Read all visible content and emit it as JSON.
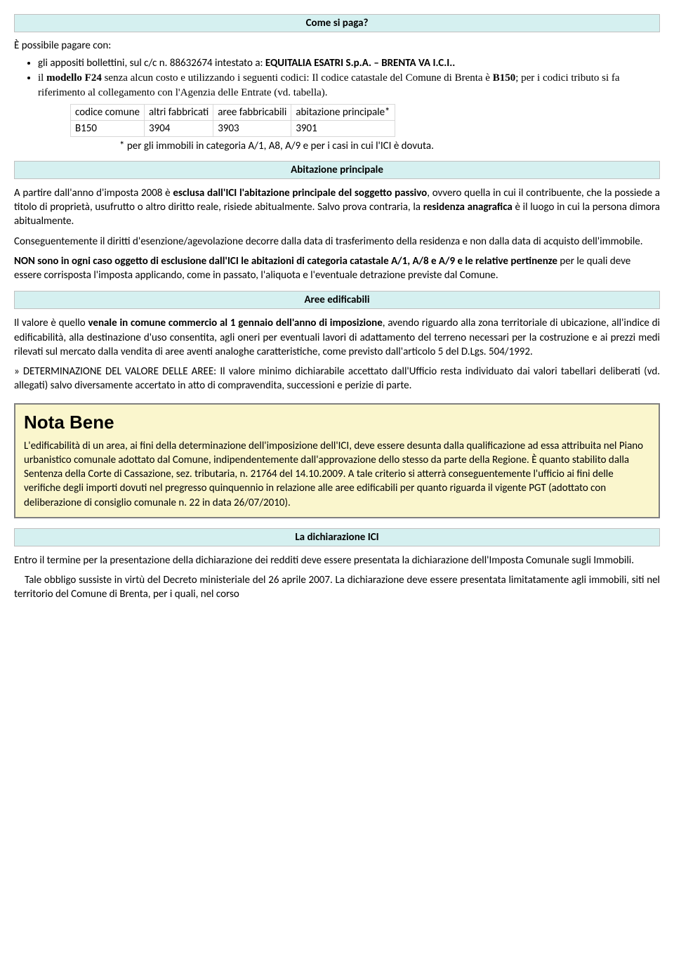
{
  "headers": {
    "come_si_paga": "Come si paga?",
    "abitazione": "Abitazione principale",
    "aree": "Aree edificabili",
    "dichiarazione": "La dichiarazione ICI"
  },
  "intro": "È possibile pagare con:",
  "bullets": {
    "b1_a": "gli appositi bollettini, sul c/c n. 88632674 intestato a: ",
    "b1_b": "EQUITALIA ESATRI S.p.A. – BRENTA VA I.C.I..",
    "b2_a": "il ",
    "b2_b": "modello F24",
    "b2_c": " senza alcun costo e utilizzando i seguenti codici: Il codice catastale del Comune di Brenta è ",
    "b2_d": "B150",
    "b2_e": "; per i codici tributo si fa riferimento al collegamento con l'Agenzia delle Entrate (vd. tabella)."
  },
  "table": {
    "h1": "codice comune",
    "h2": "altri fabbricati",
    "h3": "aree fabbricabili",
    "h4": "abitazione principale*",
    "r1c1": "B150",
    "r1c2": "3904",
    "r1c3": "3903",
    "r1c4": "3901"
  },
  "footnote": "* per gli immobili in categoria A/1, A8, A/9 e per i casi in cui l'ICI è dovuta.",
  "abitazione": {
    "p1_a": "A partire dall'anno d'imposta 2008 è ",
    "p1_b": "esclusa dall'ICI l'abitazione principale del soggetto passivo",
    "p1_c": ", ovvero quella in cui il contribuente, che la possiede a titolo di proprietà, usufrutto o altro diritto reale, risiede abitualmente. Salvo prova contraria, la ",
    "p1_d": "residenza anagrafica",
    "p1_e": " è il luogo in cui la persona dimora abitualmente.",
    "p2": "Conseguentemente il diritti d'esenzione/agevolazione decorre dalla data di trasferimento della residenza e non dalla data di acquisto dell'immobile.",
    "p3_a": "NON sono in ogni caso oggetto di esclusione dall'ICI le abitazioni di categoria catastale A/1, A/8 e A/9 e le relative pertinenze ",
    "p3_b": "per le quali deve essere corrisposta l'imposta applicando, come in passato, l'aliquota e l'eventuale detrazione previste dal Comune."
  },
  "aree": {
    "p1_a": "Il valore è quello ",
    "p1_b": "venale in comune commercio al 1 gennaio dell'anno di imposizione",
    "p1_c": ", avendo riguardo alla zona territoriale di ubicazione, all'indice di edificabilità, alla destinazione d'uso consentita, agli oneri per eventuali lavori di adattamento del terreno necessari per la costruzione e ai prezzi medi rilevati sul mercato dalla vendita di aree aventi analoghe caratteristiche, come previsto dall'articolo 5 del D.Lgs. 504/1992.",
    "p2": "» DETERMINAZIONE DEL VALORE DELLE AREE: Il valore minimo dichiarabile accettato dall'Ufficio resta individuato dai valori tabellari deliberati (vd. allegati) salvo  diversamente accertato in atto di compravendita, successioni e perizie di parte."
  },
  "nota": {
    "title": "Nota Bene",
    "body": "L'edificabilità di un area, ai fini della determinazione dell'imposizione dell'ICI, deve essere desunta dalla qualificazione ad essa attribuita nel Piano urbanistico comunale adottato dal Comune, indipendentemente dall'approvazione dello stesso da parte della Regione. È quanto stabilito dalla Sentenza della Corte di Cassazione, sez. tributaria, n. 21764 del 14.10.2009. A tale criterio si atterrà conseguentemente l'ufficio ai fini delle verifiche degli importi dovuti nel pregresso quinquennio in relazione alle aree edificabili per quanto riguarda il vigente PGT (adottato con deliberazione di consiglio comunale n. 22 in data 26/07/2010)."
  },
  "dichiarazione": {
    "p1": "Entro il termine per la presentazione della dichiarazione dei redditi deve essere presentata la dichiarazione dell'Imposta Comunale sugli Immobili.",
    "p2": "    Tale obbligo sussiste in virtù del Decreto ministeriale del 26 aprile 2007. La dichiarazione deve essere presentata limitatamente agli immobili, siti nel territorio del Comune di Brenta, per i quali, nel corso"
  }
}
